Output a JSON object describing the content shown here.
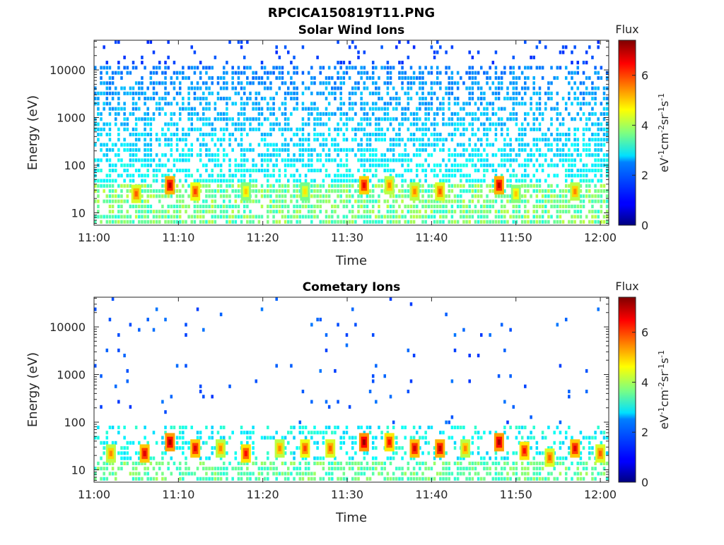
{
  "figure": {
    "title": "RPCICA150819T11.PNG"
  },
  "chart_data": [
    {
      "type": "heatmap",
      "title": "Solar Wind Ions",
      "xlabel": "Time",
      "ylabel": "Energy (eV)",
      "y_scale": "log",
      "xlim": [
        "11:00",
        "12:01"
      ],
      "ylim": [
        5.5,
        42000
      ],
      "x_ticks": [
        "11:00",
        "11:10",
        "11:20",
        "11:30",
        "11:40",
        "11:50",
        "12:00"
      ],
      "y_ticks": [
        10,
        100,
        1000,
        10000
      ],
      "y_tick_labels": [
        "10",
        "100",
        "1000",
        "10000"
      ],
      "colorbar": {
        "title": "Flux",
        "label": "eV-1cm-2sr-1s-1",
        "range": [
          0,
          7.4
        ],
        "ticks": [
          0,
          2,
          4,
          6
        ],
        "colormap": "jet"
      },
      "flux_peaks_low_energy": [
        {
          "time": "11:05",
          "energy_ev": 25,
          "flux": 5.8
        },
        {
          "time": "11:09",
          "energy_ev": 38,
          "flux": 6.9
        },
        {
          "time": "11:12",
          "energy_ev": 28,
          "flux": 6.0
        },
        {
          "time": "11:18",
          "energy_ev": 28,
          "flux": 5.0
        },
        {
          "time": "11:25",
          "energy_ev": 28,
          "flux": 4.8
        },
        {
          "time": "11:32",
          "energy_ev": 38,
          "flux": 6.6
        },
        {
          "time": "11:35",
          "energy_ev": 38,
          "flux": 5.5
        },
        {
          "time": "11:38",
          "energy_ev": 28,
          "flux": 5.5
        },
        {
          "time": "11:41",
          "energy_ev": 28,
          "flux": 5.8
        },
        {
          "time": "11:48",
          "energy_ev": 38,
          "flux": 6.9
        },
        {
          "time": "11:50",
          "energy_ev": 25,
          "flux": 5.0
        },
        {
          "time": "11:57",
          "energy_ev": 28,
          "flux": 5.5
        }
      ]
    },
    {
      "type": "heatmap",
      "title": "Cometary Ions",
      "xlabel": "Time",
      "ylabel": "Energy (eV)",
      "y_scale": "log",
      "xlim": [
        "11:00",
        "12:01"
      ],
      "ylim": [
        5.5,
        42000
      ],
      "x_ticks": [
        "11:00",
        "11:10",
        "11:20",
        "11:30",
        "11:40",
        "11:50",
        "12:00"
      ],
      "y_ticks": [
        10,
        100,
        1000,
        10000
      ],
      "y_tick_labels": [
        "10",
        "100",
        "1000",
        "10000"
      ],
      "colorbar": {
        "title": "Flux",
        "label": "eV-1cm-2sr-1s-1",
        "range": [
          0,
          7.4
        ],
        "ticks": [
          0,
          2,
          4,
          6
        ],
        "colormap": "jet"
      },
      "flux_peaks_low_energy": [
        {
          "time": "11:02",
          "energy_ev": 22,
          "flux": 5.5
        },
        {
          "time": "11:06",
          "energy_ev": 22,
          "flux": 6.7
        },
        {
          "time": "11:09",
          "energy_ev": 38,
          "flux": 7.1
        },
        {
          "time": "11:12",
          "energy_ev": 28,
          "flux": 6.7
        },
        {
          "time": "11:15",
          "energy_ev": 28,
          "flux": 5.5
        },
        {
          "time": "11:18",
          "energy_ev": 22,
          "flux": 6.4
        },
        {
          "time": "11:22",
          "energy_ev": 28,
          "flux": 5.5
        },
        {
          "time": "11:25",
          "energy_ev": 28,
          "flux": 6.0
        },
        {
          "time": "11:28",
          "energy_ev": 28,
          "flux": 5.8
        },
        {
          "time": "11:32",
          "energy_ev": 38,
          "flux": 7.2
        },
        {
          "time": "11:35",
          "energy_ev": 38,
          "flux": 6.4
        },
        {
          "time": "11:38",
          "energy_ev": 28,
          "flux": 6.8
        },
        {
          "time": "11:41",
          "energy_ev": 28,
          "flux": 6.9
        },
        {
          "time": "11:44",
          "energy_ev": 28,
          "flux": 5.5
        },
        {
          "time": "11:48",
          "energy_ev": 38,
          "flux": 7.1
        },
        {
          "time": "11:51",
          "energy_ev": 25,
          "flux": 6.4
        },
        {
          "time": "11:54",
          "energy_ev": 18,
          "flux": 5.8
        },
        {
          "time": "11:57",
          "energy_ev": 28,
          "flux": 6.7
        },
        {
          "time": "12:00",
          "energy_ev": 22,
          "flux": 5.8
        }
      ]
    }
  ]
}
